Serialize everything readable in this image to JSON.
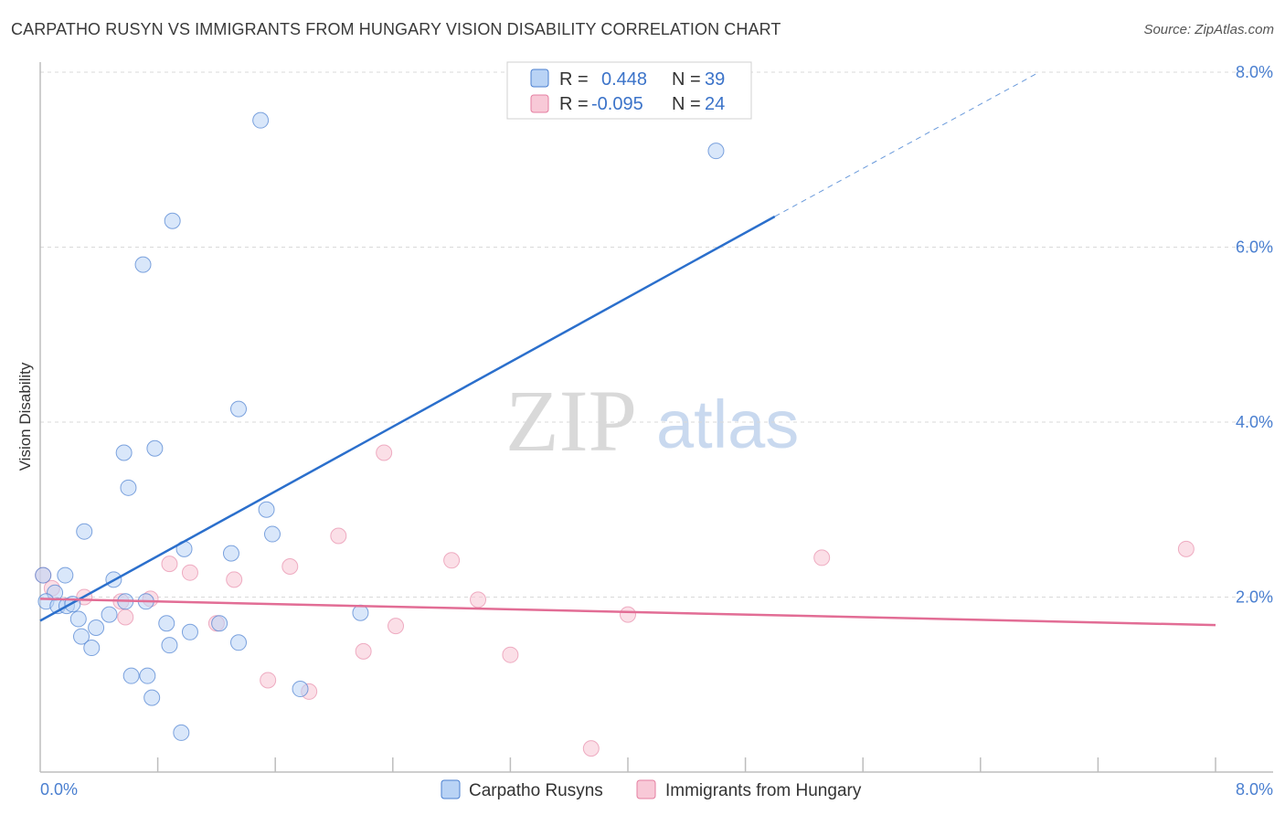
{
  "header": {
    "title": "CARPATHO RUSYN VS IMMIGRANTS FROM HUNGARY VISION DISABILITY CORRELATION CHART",
    "source": "Source: ZipAtlas.com"
  },
  "watermark": {
    "zip": "ZIP",
    "atlas": "atlas"
  },
  "colors": {
    "blue": "#4a7fd0",
    "blue_fill": "#b9d3f5",
    "blue_line": "#2b6fcc",
    "pink": "#e57ea0",
    "pink_fill": "#f8c9d7",
    "pink_line": "#e26d95",
    "grid": "#d9d9d9"
  },
  "legend": {
    "rows": [
      {
        "r_label": "R =",
        "r_value": "0.448",
        "n_label": "N =",
        "n_value": "39"
      },
      {
        "r_label": "R =",
        "r_value": "-0.095",
        "n_label": "N =",
        "n_value": "24"
      }
    ]
  },
  "chart_data": {
    "type": "scatter",
    "title": "CARPATHO RUSYN VS IMMIGRANTS FROM HUNGARY VISION DISABILITY CORRELATION CHART",
    "xlabel": "",
    "ylabel": "Vision Disability",
    "xlim": [
      0.0,
      8.4
    ],
    "ylim": [
      0.0,
      8.2
    ],
    "x_tick_labels": [
      "0.0%",
      "8.0%"
    ],
    "y_tick_labels": [
      "2.0%",
      "4.0%",
      "6.0%",
      "8.0%"
    ],
    "y_ticks": [
      2.0,
      4.0,
      6.0,
      8.0
    ],
    "grid": true,
    "series": [
      {
        "name": "Carpatho Rusyns",
        "color": "#4a7fd0",
        "points": [
          [
            0.02,
            2.25
          ],
          [
            0.1,
            2.05
          ],
          [
            0.04,
            1.95
          ],
          [
            0.12,
            1.9
          ],
          [
            0.18,
            1.9
          ],
          [
            0.22,
            1.92
          ],
          [
            0.17,
            2.25
          ],
          [
            0.3,
            2.75
          ],
          [
            0.26,
            1.75
          ],
          [
            0.28,
            1.55
          ],
          [
            0.35,
            1.42
          ],
          [
            0.38,
            1.65
          ],
          [
            0.47,
            1.8
          ],
          [
            0.5,
            2.2
          ],
          [
            0.57,
            3.65
          ],
          [
            0.6,
            3.25
          ],
          [
            0.62,
            1.1
          ],
          [
            0.7,
            5.8
          ],
          [
            0.72,
            1.95
          ],
          [
            0.73,
            1.1
          ],
          [
            0.76,
            0.85
          ],
          [
            0.78,
            3.7
          ],
          [
            0.86,
            1.7
          ],
          [
            0.88,
            1.45
          ],
          [
            0.9,
            6.3
          ],
          [
            0.96,
            0.45
          ],
          [
            0.98,
            2.55
          ],
          [
            1.02,
            1.6
          ],
          [
            1.22,
            1.7
          ],
          [
            1.3,
            2.5
          ],
          [
            1.35,
            1.48
          ],
          [
            1.35,
            4.15
          ],
          [
            1.5,
            7.45
          ],
          [
            1.54,
            3.0
          ],
          [
            1.58,
            2.72
          ],
          [
            1.77,
            0.95
          ],
          [
            2.18,
            1.82
          ],
          [
            4.6,
            7.1
          ],
          [
            0.58,
            1.95
          ]
        ],
        "trend": {
          "x": [
            0.0,
            5.0
          ],
          "y": [
            1.73,
            6.35
          ],
          "dashed_to": [
            6.8,
            8.0
          ]
        }
      },
      {
        "name": "Immigrants from Hungary",
        "color": "#e57ea0",
        "points": [
          [
            0.02,
            2.25
          ],
          [
            0.08,
            2.1
          ],
          [
            0.3,
            2.0
          ],
          [
            0.55,
            1.95
          ],
          [
            0.58,
            1.77
          ],
          [
            0.75,
            1.98
          ],
          [
            0.88,
            2.38
          ],
          [
            1.02,
            2.28
          ],
          [
            1.2,
            1.7
          ],
          [
            1.32,
            2.2
          ],
          [
            1.55,
            1.05
          ],
          [
            1.7,
            2.35
          ],
          [
            1.83,
            0.92
          ],
          [
            2.03,
            2.7
          ],
          [
            2.2,
            1.38
          ],
          [
            2.34,
            3.65
          ],
          [
            2.42,
            1.67
          ],
          [
            2.8,
            2.42
          ],
          [
            2.98,
            1.97
          ],
          [
            3.2,
            1.34
          ],
          [
            3.75,
            0.27
          ],
          [
            4.0,
            1.8
          ],
          [
            5.32,
            2.45
          ],
          [
            7.8,
            2.55
          ]
        ],
        "trend": {
          "x": [
            0.0,
            8.0
          ],
          "y": [
            1.98,
            1.68
          ]
        }
      }
    ]
  },
  "bottom_legend": {
    "items": [
      {
        "label": "Carpatho Rusyns"
      },
      {
        "label": "Immigrants from Hungary"
      }
    ]
  }
}
